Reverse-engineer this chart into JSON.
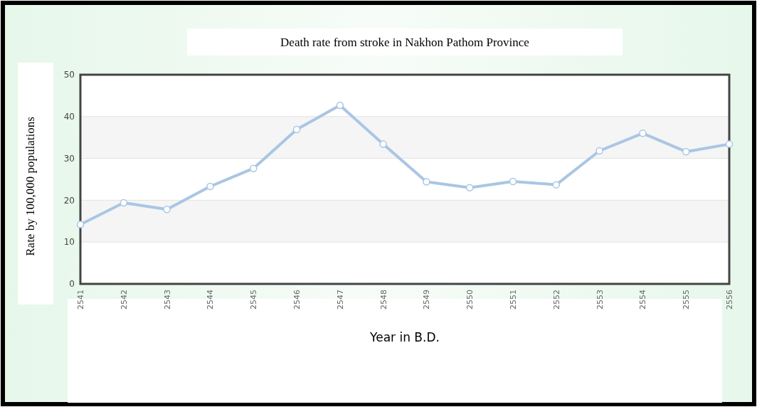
{
  "chart_data": {
    "type": "line",
    "title": "Death rate from stroke in Nakhon Pathom Province",
    "xlabel": "Year in B.D.",
    "ylabel": "Rate by 100,000 populations",
    "categories": [
      "2541",
      "2542",
      "2543",
      "2544",
      "2545",
      "2546",
      "2547",
      "2548",
      "2549",
      "2550",
      "2551",
      "2552",
      "2553",
      "2554",
      "2555",
      "2556"
    ],
    "series": [
      {
        "color": "#a9c6e4",
        "values": [
          14.2,
          19.4,
          17.8,
          23.3,
          27.6,
          36.9,
          42.7,
          33.4,
          24.4,
          23.0,
          24.5,
          23.7,
          31.8,
          36.0,
          31.6,
          33.4
        ]
      }
    ],
    "ylim": [
      0,
      50
    ],
    "yticks": [
      0,
      10,
      20,
      30,
      40,
      50
    ],
    "grid": "y",
    "marker": "circle"
  }
}
